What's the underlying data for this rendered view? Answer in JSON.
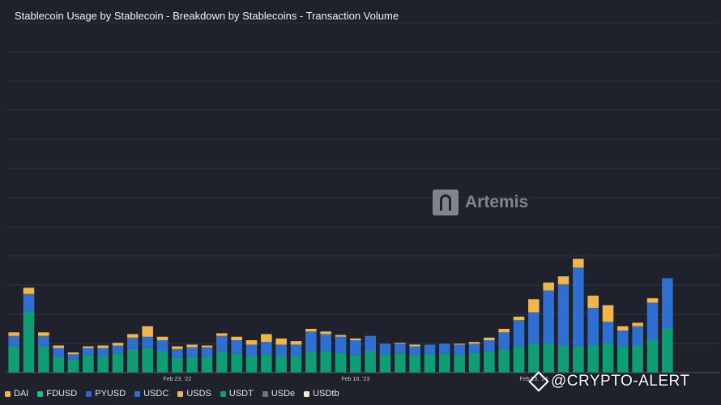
{
  "chart_data": {
    "type": "bar",
    "stacked": true,
    "title": "Stablecoin Usage by Stablecoin - Breakdown by Stablecoins - Transaction Volume",
    "x_tick_labels": [
      {
        "label": "Feb 23, '22",
        "index": 11
      },
      {
        "label": "Feb 18, '23",
        "index": 23
      },
      {
        "label": "Feb 13, '24",
        "index": 35
      }
    ],
    "grid": true,
    "legend_position": "bottom-left",
    "ylim": [
      0,
      400
    ],
    "series": [
      {
        "name": "DAI",
        "color": "#f2b54a",
        "values": [
          0,
          0,
          0,
          0,
          0,
          0,
          0,
          0,
          0,
          0,
          0,
          0,
          0,
          0,
          0,
          0,
          0,
          0,
          0,
          0,
          0,
          0,
          0,
          0,
          0,
          0,
          0,
          0,
          0,
          0,
          0,
          0,
          0,
          0,
          0,
          0,
          0,
          0,
          0,
          0,
          0,
          0,
          0,
          0,
          0,
          0,
          0,
          0
        ]
      },
      {
        "name": "FDUSD",
        "color": "#1cc27c",
        "values": [
          0,
          0,
          0,
          0,
          0,
          0,
          0,
          0,
          0,
          0,
          0,
          0,
          0,
          0,
          0,
          0,
          0,
          0,
          0,
          0,
          0,
          0,
          0,
          0,
          0,
          0,
          0,
          0,
          0,
          0,
          0,
          0,
          0,
          0,
          0,
          0,
          0,
          0,
          0,
          0,
          0,
          0,
          0,
          0,
          0,
          0,
          0,
          0
        ]
      },
      {
        "name": "PYUSD",
        "color": "#3c5ce0",
        "values": [
          0,
          0,
          0,
          0,
          0,
          0,
          0,
          0,
          0,
          0,
          0,
          0,
          0,
          0,
          0,
          0,
          0,
          0,
          0,
          0,
          0,
          0,
          0,
          0,
          0,
          0,
          0,
          0,
          0,
          0,
          0,
          0,
          0,
          0,
          0,
          0,
          0,
          0,
          0,
          0,
          0,
          0,
          0,
          0,
          0,
          0,
          0,
          0
        ]
      },
      {
        "name": "USDC",
        "color": "#2f6fd1",
        "values": [
          12,
          20,
          12,
          10,
          6,
          8,
          9,
          9,
          13,
          13,
          12,
          10,
          11,
          11,
          18,
          15,
          13,
          14,
          13,
          13,
          23,
          20,
          18,
          17,
          17,
          12,
          11,
          10,
          11,
          11,
          12,
          10,
          13,
          19,
          30,
          36,
          60,
          70,
          90,
          42,
          24,
          18,
          22,
          42,
          58,
          0,
          0,
          0
        ]
      },
      {
        "name": "USDS",
        "color": "#f2b54a",
        "values": [
          4,
          7,
          4,
          3,
          2,
          2,
          3,
          3,
          4,
          12,
          4,
          3,
          3,
          2,
          3,
          4,
          5,
          9,
          7,
          4,
          3,
          3,
          2,
          2,
          0,
          0,
          1,
          2,
          0,
          0,
          1,
          2,
          3,
          4,
          4,
          15,
          9,
          9,
          10,
          14,
          19,
          5,
          4,
          5,
          0,
          0,
          0,
          0
        ]
      },
      {
        "name": "USDT",
        "color": "#0f9d73",
        "values": [
          30,
          70,
          30,
          18,
          15,
          20,
          19,
          22,
          27,
          28,
          25,
          17,
          18,
          18,
          24,
          22,
          19,
          21,
          19,
          19,
          24,
          24,
          23,
          20,
          25,
          21,
          22,
          20,
          21,
          22,
          20,
          23,
          24,
          27,
          30,
          33,
          34,
          31,
          30,
          32,
          34,
          30,
          31,
          38,
          50,
          0,
          0,
          0
        ]
      },
      {
        "name": "USDe",
        "color": "#6f7280",
        "values": [
          0,
          0,
          0,
          0,
          0,
          0,
          0,
          0,
          0,
          0,
          0,
          0,
          0,
          0,
          0,
          0,
          0,
          0,
          0,
          0,
          0,
          0,
          0,
          0,
          0,
          0,
          0,
          0,
          0,
          0,
          0,
          0,
          0,
          0,
          0,
          0,
          0,
          0,
          0,
          0,
          0,
          0,
          0,
          0,
          0,
          0,
          0,
          0
        ]
      },
      {
        "name": "USDtb",
        "color": "#f4ecc9",
        "values": [
          0,
          0,
          0,
          0,
          0,
          0,
          0,
          0,
          0,
          0,
          0,
          0,
          0,
          0,
          0,
          0,
          0,
          0,
          0,
          0,
          0,
          0,
          0,
          0,
          0,
          0,
          0,
          0,
          0,
          0,
          0,
          0,
          0,
          0,
          0,
          0,
          0,
          0,
          0,
          0,
          0,
          0,
          0,
          0,
          0,
          0,
          0,
          0
        ]
      }
    ]
  },
  "legend": [
    {
      "label": "DAI",
      "color": "#f2b54a"
    },
    {
      "label": "FDUSD",
      "color": "#1cc27c"
    },
    {
      "label": "PYUSD",
      "color": "#3c5ce0"
    },
    {
      "label": "USDC",
      "color": "#2f6fd1"
    },
    {
      "label": "USDS",
      "color": "#f2b54a"
    },
    {
      "label": "USDT",
      "color": "#0f9d73"
    },
    {
      "label": "USDe",
      "color": "#6f7280"
    },
    {
      "label": "USDtb",
      "color": "#f4ecc9"
    }
  ],
  "watermarks": {
    "artemis": "Artemis",
    "crypto_alert": "@CRYPTO-ALERT"
  }
}
